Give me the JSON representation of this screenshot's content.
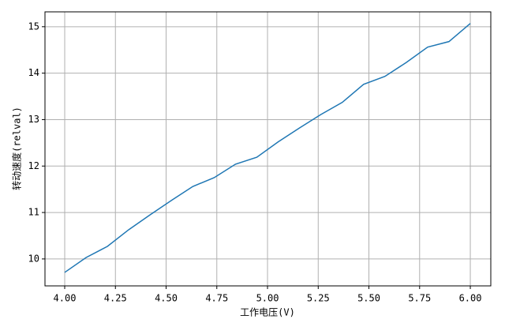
{
  "chart_data": {
    "type": "line",
    "xlabel": "工作电压(V)",
    "ylabel": "转动速度(relval)",
    "x": [
      4.0,
      4.1053,
      4.2105,
      4.3158,
      4.4211,
      4.5263,
      4.6316,
      4.7368,
      4.8421,
      4.9474,
      5.0526,
      5.1579,
      5.2632,
      5.3684,
      5.4737,
      5.5789,
      5.6842,
      5.7895,
      5.8947,
      6.0
    ],
    "series": [
      {
        "color": "#1f77b4",
        "values": [
          9.71,
          10.03,
          10.27,
          10.63,
          10.95,
          11.26,
          11.56,
          11.75,
          12.04,
          12.19,
          12.52,
          12.82,
          13.11,
          13.37,
          13.76,
          13.93,
          14.23,
          14.56,
          14.68,
          15.07
        ]
      }
    ],
    "xlim": [
      3.9027,
      6.101
    ],
    "ylim": [
      9.42,
      15.32
    ],
    "xticks": [
      {
        "value": 4,
        "label": "4.00"
      },
      {
        "value": 4.25,
        "label": "4.25"
      },
      {
        "value": 4.5,
        "label": "4.50"
      },
      {
        "value": 4.75,
        "label": "4.75"
      },
      {
        "value": 5,
        "label": "5.00"
      },
      {
        "value": 5.25,
        "label": "5.25"
      },
      {
        "value": 5.5,
        "label": "5.50"
      },
      {
        "value": 5.75,
        "label": "5.75"
      },
      {
        "value": 6,
        "label": "6.00"
      }
    ],
    "yticks": [
      10,
      11,
      12,
      13,
      14,
      15
    ],
    "grid": true
  }
}
